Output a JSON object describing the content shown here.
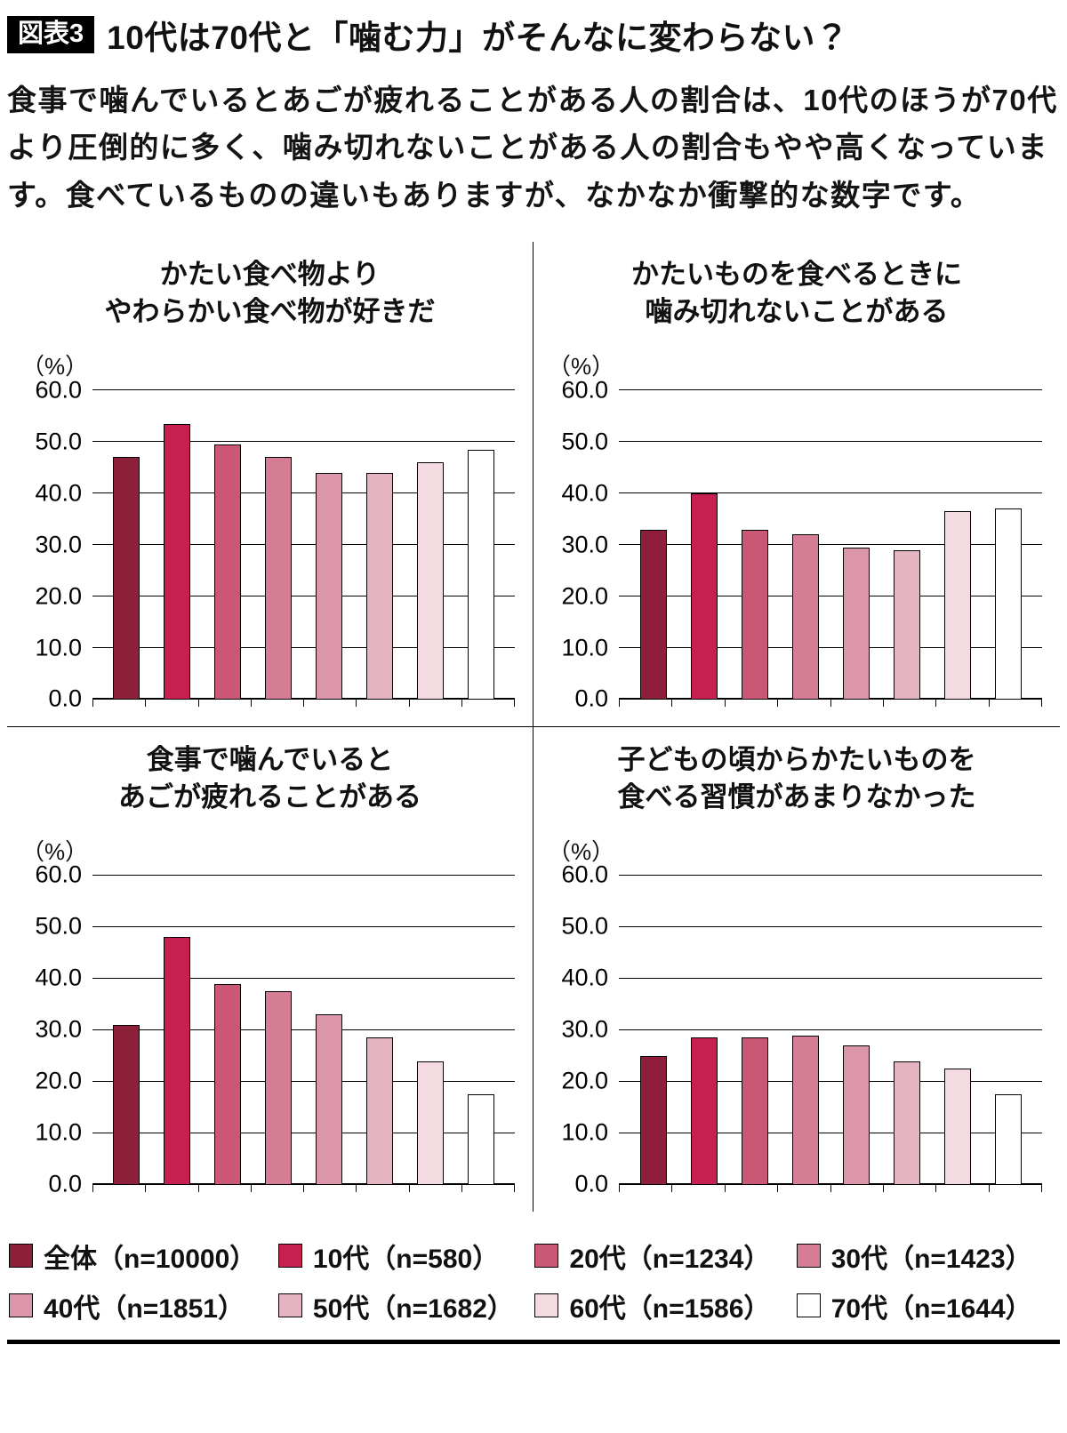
{
  "header": {
    "badge": "図表3",
    "title": "10代は70代と「噛む力」がそんなに変わらない？"
  },
  "intro": "食事で噛んでいるとあごが疲れることがある人の割合は、10代のほうが70代より圧倒的に多く、噛み切れないことがある人の割合もやや高くなっています。食べているものの違いもありますが、なかなか衝撃的な数字です。",
  "axis": {
    "unit_label": "（%）",
    "ticks": [
      60,
      50,
      40,
      30,
      20,
      10,
      0
    ],
    "max": 60
  },
  "groups": [
    {
      "label": "全体（n=10000）",
      "color": "#8e1f3a"
    },
    {
      "label": "10代（n=580）",
      "color": "#c5204f"
    },
    {
      "label": "20代（n=1234）",
      "color": "#ca5776"
    },
    {
      "label": "30代（n=1423）",
      "color": "#d47d95"
    },
    {
      "label": "40代（n=1851）",
      "color": "#dc96a9"
    },
    {
      "label": "50代（n=1682）",
      "color": "#e5b4c1"
    },
    {
      "label": "60代（n=1586）",
      "color": "#f4dae1"
    },
    {
      "label": "70代（n=1644）",
      "color": "#ffffff"
    }
  ],
  "chart_data": [
    {
      "type": "bar",
      "title": "かたい食べ物よりやわらかい食べ物が好きだ",
      "title_lines": [
        "かたい食べ物より",
        "やわらかい食べ物が好きだ"
      ],
      "categories": [
        "全体",
        "10代",
        "20代",
        "30代",
        "40代",
        "50代",
        "60代",
        "70代"
      ],
      "values": [
        47.0,
        53.5,
        49.5,
        47.0,
        44.0,
        44.0,
        46.0,
        48.5
      ],
      "xlabel": "",
      "ylabel": "（%）",
      "ylim": [
        0,
        60
      ],
      "grid": true,
      "legend_position": "bottom-shared"
    },
    {
      "type": "bar",
      "title": "かたいものを食べるときに噛み切れないことがある",
      "title_lines": [
        "かたいものを食べるときに",
        "噛み切れないことがある"
      ],
      "categories": [
        "全体",
        "10代",
        "20代",
        "30代",
        "40代",
        "50代",
        "60代",
        "70代"
      ],
      "values": [
        33.0,
        40.0,
        33.0,
        32.0,
        29.5,
        29.0,
        36.5,
        37.0
      ],
      "xlabel": "",
      "ylabel": "（%）",
      "ylim": [
        0,
        60
      ],
      "grid": true,
      "legend_position": "bottom-shared"
    },
    {
      "type": "bar",
      "title": "食事で噛んでいるとあごが疲れることがある",
      "title_lines": [
        "食事で噛んでいると",
        "あごが疲れることがある"
      ],
      "categories": [
        "全体",
        "10代",
        "20代",
        "30代",
        "40代",
        "50代",
        "60代",
        "70代"
      ],
      "values": [
        31.0,
        48.0,
        39.0,
        37.5,
        33.0,
        28.5,
        24.0,
        17.5
      ],
      "xlabel": "",
      "ylabel": "（%）",
      "ylim": [
        0,
        60
      ],
      "grid": true,
      "legend_position": "bottom-shared"
    },
    {
      "type": "bar",
      "title": "子どもの頃からかたいものを食べる習慣があまりなかった",
      "title_lines": [
        "子どもの頃からかたいものを",
        "食べる習慣があまりなかった"
      ],
      "categories": [
        "全体",
        "10代",
        "20代",
        "30代",
        "40代",
        "50代",
        "60代",
        "70代"
      ],
      "values": [
        25.0,
        28.5,
        28.5,
        29.0,
        27.0,
        24.0,
        22.5,
        17.5
      ],
      "xlabel": "",
      "ylabel": "（%）",
      "ylim": [
        0,
        60
      ],
      "grid": true,
      "legend_position": "bottom-shared"
    }
  ]
}
